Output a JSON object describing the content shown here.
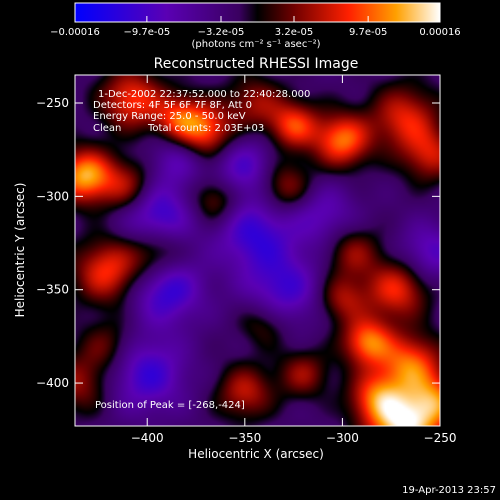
{
  "chart_data": {
    "type": "heatmap",
    "title": "Reconstructed RHESSI Image",
    "xlabel": "Heliocentric X (arcsec)",
    "ylabel": "Heliocentric Y (arcsec)",
    "xlim": [
      -437,
      -250
    ],
    "ylim": [
      -423,
      -235
    ],
    "x_ticks": [
      -400,
      -350,
      -300,
      -250
    ],
    "y_ticks": [
      -250,
      -300,
      -350,
      -400
    ],
    "colorbar": {
      "range": [
        -0.00016,
        0.00016
      ],
      "tick_labels": [
        "-0.00016",
        "-9.7e-05",
        "-3.2e-05",
        "3.2e-05",
        "9.7e-05",
        "0.00016"
      ],
      "units": "(photons cm⁻² s⁻¹ asec⁻²)"
    },
    "annotations": {
      "time": "1-Dec-2002 22:37:52.000 to 22:40:28.000",
      "detectors": "Detectors: 4F 5F 6F 7F 8F, Att 0",
      "energy": "Energy Range: 25.0 - 50.0 keV",
      "method": "Clean",
      "counts": "Total counts: 2.03E+03",
      "peak": "Position of Peak = [-268,-424]"
    },
    "footer_date": "19-Apr-2013 23:57",
    "sources": [
      {
        "x": -432,
        "y": -289,
        "amp": 1.1,
        "w": 10
      },
      {
        "x": -408,
        "y": -248,
        "amp": 0.8,
        "w": 11
      },
      {
        "x": -384,
        "y": -258,
        "amp": 0.7,
        "w": 9
      },
      {
        "x": -370,
        "y": -265,
        "amp": 0.85,
        "w": 10
      },
      {
        "x": -345,
        "y": -250,
        "amp": 0.5,
        "w": 10
      },
      {
        "x": -325,
        "y": -262,
        "amp": 0.8,
        "w": 9
      },
      {
        "x": -300,
        "y": -270,
        "amp": 0.95,
        "w": 10
      },
      {
        "x": -268,
        "y": -258,
        "amp": 0.7,
        "w": 12
      },
      {
        "x": -255,
        "y": -278,
        "amp": 0.6,
        "w": 10
      },
      {
        "x": -410,
        "y": -295,
        "amp": 0.6,
        "w": 10
      },
      {
        "x": -365,
        "y": -302,
        "amp": 0.55,
        "w": 9
      },
      {
        "x": -330,
        "y": -295,
        "amp": 0.6,
        "w": 10
      },
      {
        "x": -420,
        "y": -340,
        "amp": 0.8,
        "w": 12
      },
      {
        "x": -395,
        "y": -330,
        "amp": 0.55,
        "w": 10
      },
      {
        "x": -295,
        "y": -330,
        "amp": 0.5,
        "w": 10
      },
      {
        "x": -272,
        "y": -350,
        "amp": 0.75,
        "w": 11
      },
      {
        "x": -300,
        "y": -355,
        "amp": 0.55,
        "w": 9
      },
      {
        "x": -340,
        "y": -368,
        "amp": 0.4,
        "w": 9
      },
      {
        "x": -287,
        "y": -378,
        "amp": 0.95,
        "w": 9
      },
      {
        "x": -265,
        "y": -390,
        "amp": 0.9,
        "w": 11
      },
      {
        "x": -320,
        "y": -395,
        "amp": 0.5,
        "w": 9
      },
      {
        "x": -350,
        "y": -405,
        "amp": 0.6,
        "w": 10
      },
      {
        "x": -282,
        "y": -408,
        "amp": 0.85,
        "w": 10
      },
      {
        "x": -268,
        "y": -424,
        "amp": 1.2,
        "w": 12
      },
      {
        "x": -252,
        "y": -410,
        "amp": 0.8,
        "w": 10
      },
      {
        "x": -435,
        "y": -400,
        "amp": 0.5,
        "w": 11
      },
      {
        "x": -420,
        "y": -380,
        "amp": 0.4,
        "w": 10
      },
      {
        "x": -395,
        "y": -310,
        "amp": -0.7,
        "w": 13
      },
      {
        "x": -345,
        "y": -320,
        "amp": -0.65,
        "w": 14
      },
      {
        "x": -390,
        "y": -350,
        "amp": -0.7,
        "w": 13
      },
      {
        "x": -330,
        "y": -350,
        "amp": -0.6,
        "w": 14
      },
      {
        "x": -400,
        "y": -395,
        "amp": -0.65,
        "w": 14
      },
      {
        "x": -350,
        "y": -285,
        "amp": -0.55,
        "w": 12
      },
      {
        "x": -310,
        "y": -310,
        "amp": -0.45,
        "w": 12
      },
      {
        "x": -255,
        "y": -330,
        "amp": -0.5,
        "w": 11
      },
      {
        "x": -385,
        "y": -280,
        "amp": -0.4,
        "w": 10
      }
    ]
  }
}
